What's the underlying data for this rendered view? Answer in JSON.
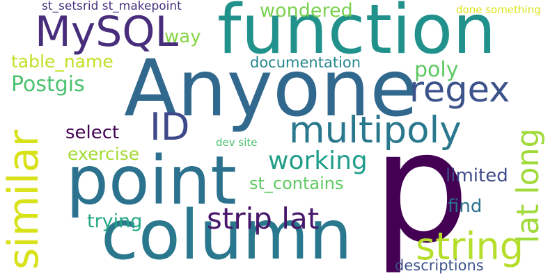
{
  "wordcloud": {
    "words": [
      {
        "text": "p",
        "color": "#440154"
      },
      {
        "text": "Anyone",
        "color": "#31688e"
      },
      {
        "text": "function",
        "color": "#21918c"
      },
      {
        "text": "column",
        "color": "#2a788e"
      },
      {
        "text": "point",
        "color": "#2c728e"
      },
      {
        "text": "multipoly",
        "color": "#2a788e"
      },
      {
        "text": "MySQL",
        "color": "#472d7b"
      },
      {
        "text": "regex",
        "color": "#3b528b"
      },
      {
        "text": "similar",
        "color": "#d8e219"
      },
      {
        "text": "string",
        "color": "#b5de2b"
      },
      {
        "text": "lat long",
        "color": "#a0da39"
      },
      {
        "text": "strip lat",
        "color": "#48186a"
      },
      {
        "text": "ID",
        "color": "#3e4989"
      },
      {
        "text": "working",
        "color": "#1f9e89"
      },
      {
        "text": "poly",
        "color": "#5ec962"
      },
      {
        "text": "Postgis",
        "color": "#4ac16d"
      },
      {
        "text": "wondered",
        "color": "#7ad151"
      },
      {
        "text": "way",
        "color": "#86d549"
      },
      {
        "text": "table_name",
        "color": "#c2df23"
      },
      {
        "text": "documentation",
        "color": "#25858e"
      },
      {
        "text": "select",
        "color": "#440154"
      },
      {
        "text": "exercise",
        "color": "#a5db36"
      },
      {
        "text": "limited",
        "color": "#3e4a89"
      },
      {
        "text": "st_contains",
        "color": "#5ec962"
      },
      {
        "text": "find",
        "color": "#2d708e"
      },
      {
        "text": "trying",
        "color": "#22a884"
      },
      {
        "text": "descriptions",
        "color": "#3b528b"
      },
      {
        "text": "st_setsrid st_makepoint",
        "color": "#46327e"
      },
      {
        "text": "done something",
        "color": "#dde318"
      },
      {
        "text": "dev site",
        "color": "#4ac16d"
      }
    ]
  }
}
